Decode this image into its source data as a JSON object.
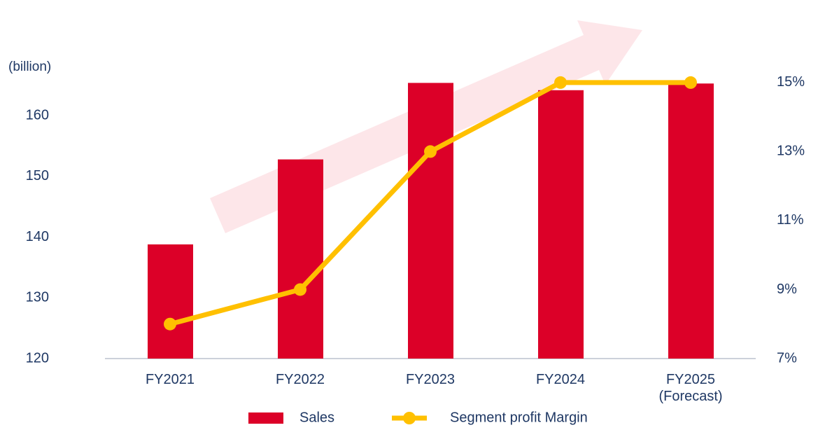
{
  "chart_data": {
    "type": "bar-line",
    "y_label": "(billion)",
    "categories": [
      "FY2021",
      "FY2022",
      "FY2023",
      "FY2024",
      "FY2025\n(Forecast)"
    ],
    "series": [
      {
        "name": "Sales",
        "type": "bar",
        "color": "#dc0028",
        "values": [
          138.8,
          152.8,
          165.4,
          164.2,
          165.3
        ]
      },
      {
        "name": "Segment profit Margin",
        "type": "line",
        "axis": "y2",
        "color": "#ffc000",
        "values": [
          8,
          9,
          13,
          15,
          15
        ]
      }
    ],
    "ylim": [
      120,
      170
    ],
    "yticks": [
      120,
      130,
      140,
      150,
      160
    ],
    "y2lim": [
      7,
      15.8
    ],
    "y2ticks": [
      {
        "value": 7,
        "label": "7%"
      },
      {
        "value": 9,
        "label": "9%"
      },
      {
        "value": 11,
        "label": "11%"
      },
      {
        "value": 13,
        "label": "13%"
      },
      {
        "value": 15,
        "label": "15%"
      }
    ]
  }
}
